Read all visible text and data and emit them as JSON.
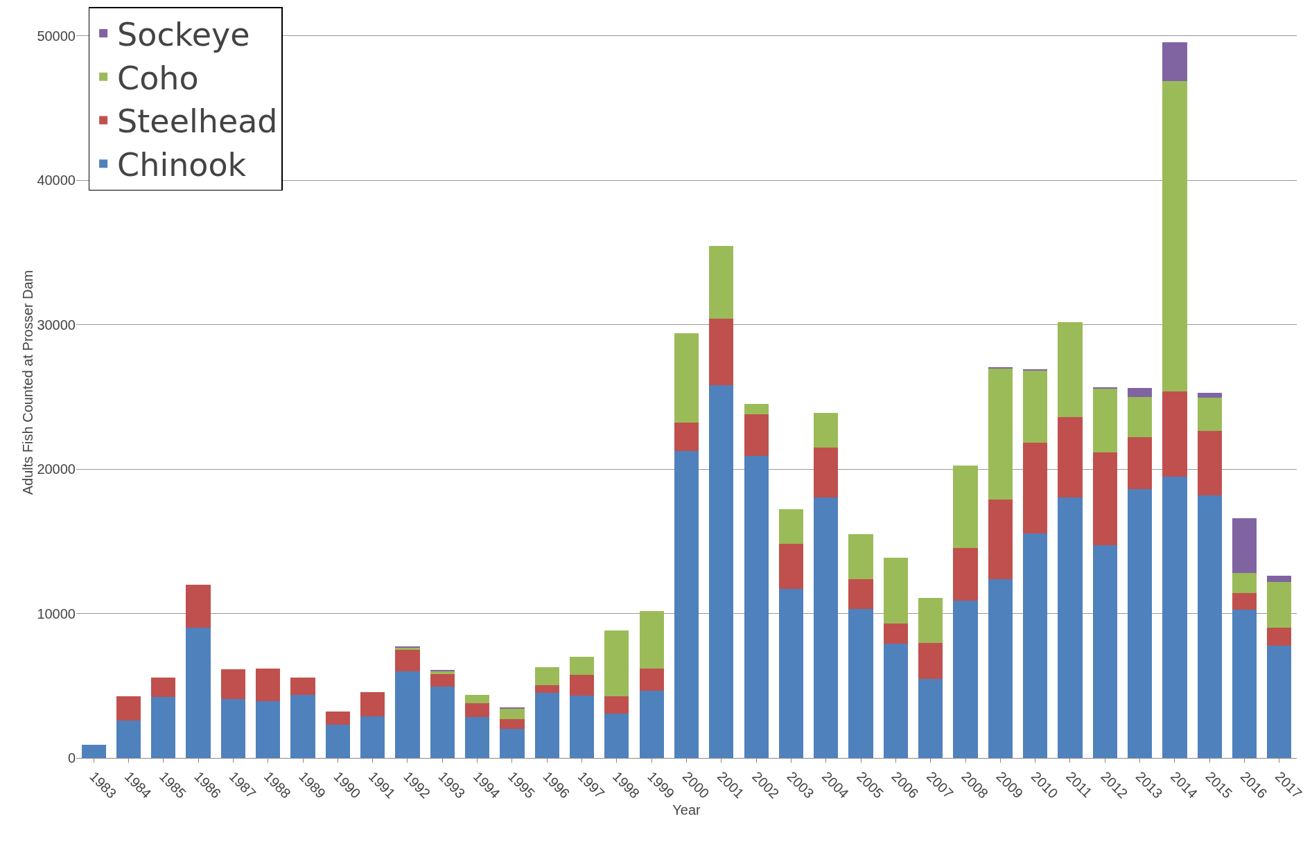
{
  "chart_data": {
    "type": "bar",
    "stacked": true,
    "xlabel": "Year",
    "ylabel": "Adults Fish Counted at Prosser Dam",
    "categories": [
      "1983",
      "1984",
      "1985",
      "1986",
      "1987",
      "1988",
      "1989",
      "1990",
      "1991",
      "1992",
      "1993",
      "1994",
      "1995",
      "1996",
      "1997",
      "1998",
      "1999",
      "2000",
      "2001",
      "2002",
      "2003",
      "2004",
      "2005",
      "2006",
      "2007",
      "2008",
      "2009",
      "2010",
      "2011",
      "2012",
      "2013",
      "2014",
      "2015",
      "2016",
      "2017"
    ],
    "series": [
      {
        "name": "Chinook",
        "color": "#4f81bd",
        "values": [
          900,
          2600,
          4200,
          9000,
          4100,
          3950,
          4350,
          2300,
          2900,
          6000,
          4950,
          2850,
          2000,
          4500,
          4300,
          3050,
          4650,
          21250,
          25800,
          20900,
          11700,
          18050,
          10300,
          7900,
          5450,
          10900,
          12400,
          15550,
          18050,
          14750,
          18600,
          19500,
          18200,
          10250,
          7750
        ]
      },
      {
        "name": "Steelhead",
        "color": "#c0504d",
        "values": [
          null,
          1650,
          1350,
          3000,
          2050,
          2250,
          1200,
          900,
          1650,
          1500,
          850,
          950,
          700,
          550,
          1450,
          1200,
          1550,
          1950,
          4600,
          2900,
          3100,
          3450,
          2100,
          1400,
          2500,
          3650,
          5500,
          6300,
          5550,
          6400,
          3600,
          5900,
          4450,
          1150,
          1250
        ]
      },
      {
        "name": "Coho",
        "color": "#9bbb59",
        "values": [
          null,
          null,
          null,
          null,
          null,
          null,
          null,
          null,
          null,
          150,
          200,
          550,
          700,
          1250,
          1250,
          4600,
          3950,
          6200,
          5050,
          700,
          2400,
          2400,
          3100,
          4550,
          3150,
          5700,
          9050,
          4950,
          6550,
          4400,
          2800,
          21450,
          2300,
          1400,
          3200
        ]
      },
      {
        "name": "Sockeye",
        "color": "#8064a2",
        "values": [
          null,
          null,
          null,
          null,
          null,
          null,
          null,
          null,
          null,
          50,
          50,
          null,
          100,
          null,
          null,
          null,
          null,
          null,
          null,
          null,
          null,
          null,
          null,
          null,
          null,
          null,
          100,
          100,
          null,
          100,
          600,
          2700,
          350,
          3800,
          400
        ]
      }
    ],
    "ylim": [
      0,
      52000
    ],
    "yticks": [
      0,
      10000,
      20000,
      30000,
      40000,
      50000
    ],
    "grid": "y",
    "legend": "top left"
  }
}
